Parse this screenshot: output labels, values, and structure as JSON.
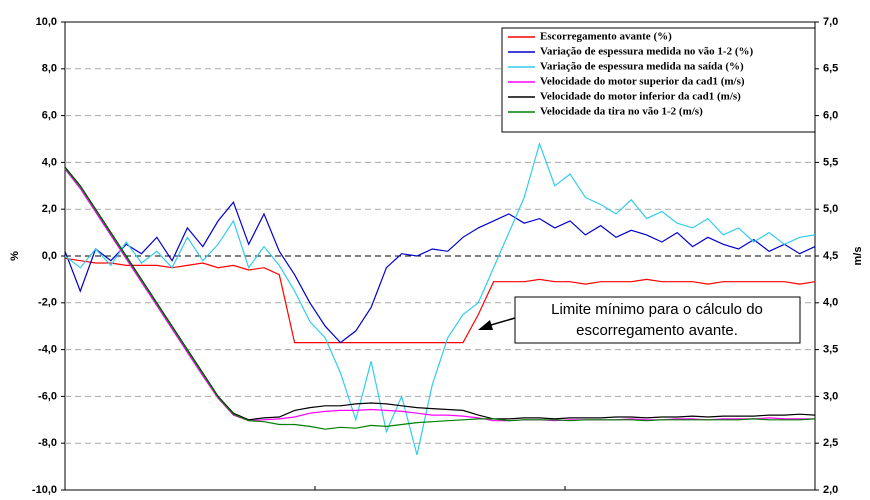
{
  "chart_data": {
    "type": "line",
    "y_label": "%",
    "y2_label": "m/s",
    "ylim": [
      -10,
      10
    ],
    "yticks": [
      {
        "value": -10,
        "label": "-10,0"
      },
      {
        "value": -8,
        "label": "-8,0"
      },
      {
        "value": -6,
        "label": "-6,0"
      },
      {
        "value": -4,
        "label": "-4,0"
      },
      {
        "value": -2,
        "label": "-2,0"
      },
      {
        "value": 0,
        "label": "0,0"
      },
      {
        "value": 2,
        "label": "2,0"
      },
      {
        "value": 4,
        "label": "4,0"
      },
      {
        "value": 6,
        "label": "6,0"
      },
      {
        "value": 8,
        "label": "8,0"
      },
      {
        "value": 10,
        "label": "10,0"
      }
    ],
    "y2lim": [
      2,
      7
    ],
    "y2ticks": [
      {
        "value": 2,
        "label": "2,0"
      },
      {
        "value": 2.5,
        "label": "2,5"
      },
      {
        "value": 3,
        "label": "3,0"
      },
      {
        "value": 3.5,
        "label": "3,5"
      },
      {
        "value": 4,
        "label": "4,0"
      },
      {
        "value": 4.5,
        "label": "4,5"
      },
      {
        "value": 5,
        "label": "5,0"
      },
      {
        "value": 5.5,
        "label": "5,5"
      },
      {
        "value": 6,
        "label": "6,0"
      },
      {
        "value": 6.5,
        "label": "6,5"
      },
      {
        "value": 7,
        "label": "7,0"
      }
    ],
    "grid": true,
    "legend": "upper right",
    "annotation": [
      "Limite mínimo para o cálculo do",
      "escorregamento avante."
    ],
    "series": [
      {
        "name": "Escorregamento avante (%)",
        "color": "#ff0000",
        "values": [
          -0.1,
          -0.2,
          -0.3,
          -0.3,
          -0.4,
          -0.4,
          -0.4,
          -0.5,
          -0.4,
          -0.3,
          -0.5,
          -0.4,
          -0.6,
          -0.5,
          -0.8,
          -3.7,
          -3.7,
          -3.7,
          -3.7,
          -3.7,
          -3.7,
          -3.7,
          -3.7,
          -3.7,
          -3.7,
          -3.7,
          -3.7,
          -2.5,
          -1.1,
          -1.1,
          -1.1,
          -1.0,
          -1.1,
          -1.1,
          -1.2,
          -1.1,
          -1.1,
          -1.1,
          -1.0,
          -1.1,
          -1.1,
          -1.1,
          -1.2,
          -1.1,
          -1.1,
          -1.1,
          -1.1,
          -1.1,
          -1.2,
          -1.1
        ]
      },
      {
        "name": "Variação de espessura medida no vão 1-2 (%)",
        "color": "#0000cc",
        "values": [
          0.2,
          -1.5,
          0.3,
          -0.2,
          0.5,
          0.1,
          0.8,
          -0.2,
          1.2,
          0.4,
          1.5,
          2.3,
          0.5,
          1.8,
          0.2,
          -0.8,
          -2.0,
          -3.0,
          -3.7,
          -3.2,
          -2.2,
          -0.5,
          0.1,
          0.0,
          0.3,
          0.2,
          0.8,
          1.2,
          1.5,
          1.8,
          1.4,
          1.6,
          1.2,
          1.5,
          0.9,
          1.3,
          0.8,
          1.1,
          0.9,
          0.6,
          1.0,
          0.4,
          0.8,
          0.5,
          0.3,
          0.7,
          0.2,
          0.5,
          0.1,
          0.4
        ]
      },
      {
        "name": "Variação de espessura medida na saída (%)",
        "color": "#33ccee",
        "values": [
          0.0,
          -0.5,
          0.3,
          -0.4,
          0.6,
          -0.3,
          0.2,
          -0.5,
          0.8,
          -0.2,
          0.5,
          1.5,
          -0.5,
          0.4,
          -0.4,
          -1.5,
          -2.8,
          -3.5,
          -5.0,
          -7.0,
          -4.5,
          -7.5,
          -6.0,
          -8.5,
          -5.5,
          -3.5,
          -2.5,
          -2.0,
          -0.5,
          1.0,
          2.5,
          4.8,
          3.0,
          3.5,
          2.5,
          2.2,
          1.8,
          2.4,
          1.6,
          1.9,
          1.4,
          1.2,
          1.6,
          0.9,
          1.2,
          0.6,
          1.0,
          0.5,
          0.8,
          0.9
        ]
      },
      {
        "name": "Velocidade do motor superior da cad1 (m/s)",
        "color": "#ff00ff",
        "axis": "y2",
        "values": [
          5.43,
          5.22,
          4.97,
          4.72,
          4.47,
          4.22,
          3.97,
          3.72,
          3.47,
          3.22,
          2.98,
          2.8,
          2.74,
          2.75,
          2.76,
          2.78,
          2.82,
          2.84,
          2.85,
          2.85,
          2.86,
          2.85,
          2.84,
          2.82,
          2.8,
          2.8,
          2.79,
          2.77,
          2.74,
          2.74,
          2.75,
          2.75,
          2.74,
          2.75,
          2.75,
          2.75,
          2.75,
          2.76,
          2.75,
          2.75,
          2.76,
          2.76,
          2.75,
          2.76,
          2.76,
          2.76,
          2.77,
          2.76,
          2.76,
          2.76
        ]
      },
      {
        "name": "Velocidade do motor inferior da cad1 (m/s)",
        "color": "#000000",
        "axis": "y2",
        "values": [
          5.45,
          5.25,
          5.0,
          4.75,
          4.5,
          4.25,
          4.0,
          3.75,
          3.5,
          3.25,
          3.0,
          2.82,
          2.75,
          2.77,
          2.78,
          2.85,
          2.88,
          2.9,
          2.9,
          2.92,
          2.93,
          2.92,
          2.9,
          2.88,
          2.87,
          2.86,
          2.85,
          2.8,
          2.76,
          2.76,
          2.77,
          2.77,
          2.76,
          2.77,
          2.77,
          2.77,
          2.78,
          2.78,
          2.77,
          2.78,
          2.78,
          2.79,
          2.78,
          2.79,
          2.79,
          2.79,
          2.8,
          2.8,
          2.81,
          2.8
        ]
      },
      {
        "name": "Velocidade da tira no vão 1-2 (m/s)",
        "color": "#008000",
        "axis": "y2",
        "values": [
          5.44,
          5.24,
          4.99,
          4.74,
          4.49,
          4.24,
          3.99,
          3.74,
          3.49,
          3.24,
          2.99,
          2.81,
          2.74,
          2.73,
          2.7,
          2.7,
          2.68,
          2.65,
          2.67,
          2.66,
          2.69,
          2.68,
          2.7,
          2.72,
          2.73,
          2.74,
          2.75,
          2.76,
          2.76,
          2.74,
          2.75,
          2.75,
          2.75,
          2.74,
          2.75,
          2.75,
          2.75,
          2.75,
          2.74,
          2.75,
          2.75,
          2.75,
          2.75,
          2.75,
          2.75,
          2.76,
          2.75,
          2.75,
          2.75,
          2.76
        ]
      }
    ]
  }
}
